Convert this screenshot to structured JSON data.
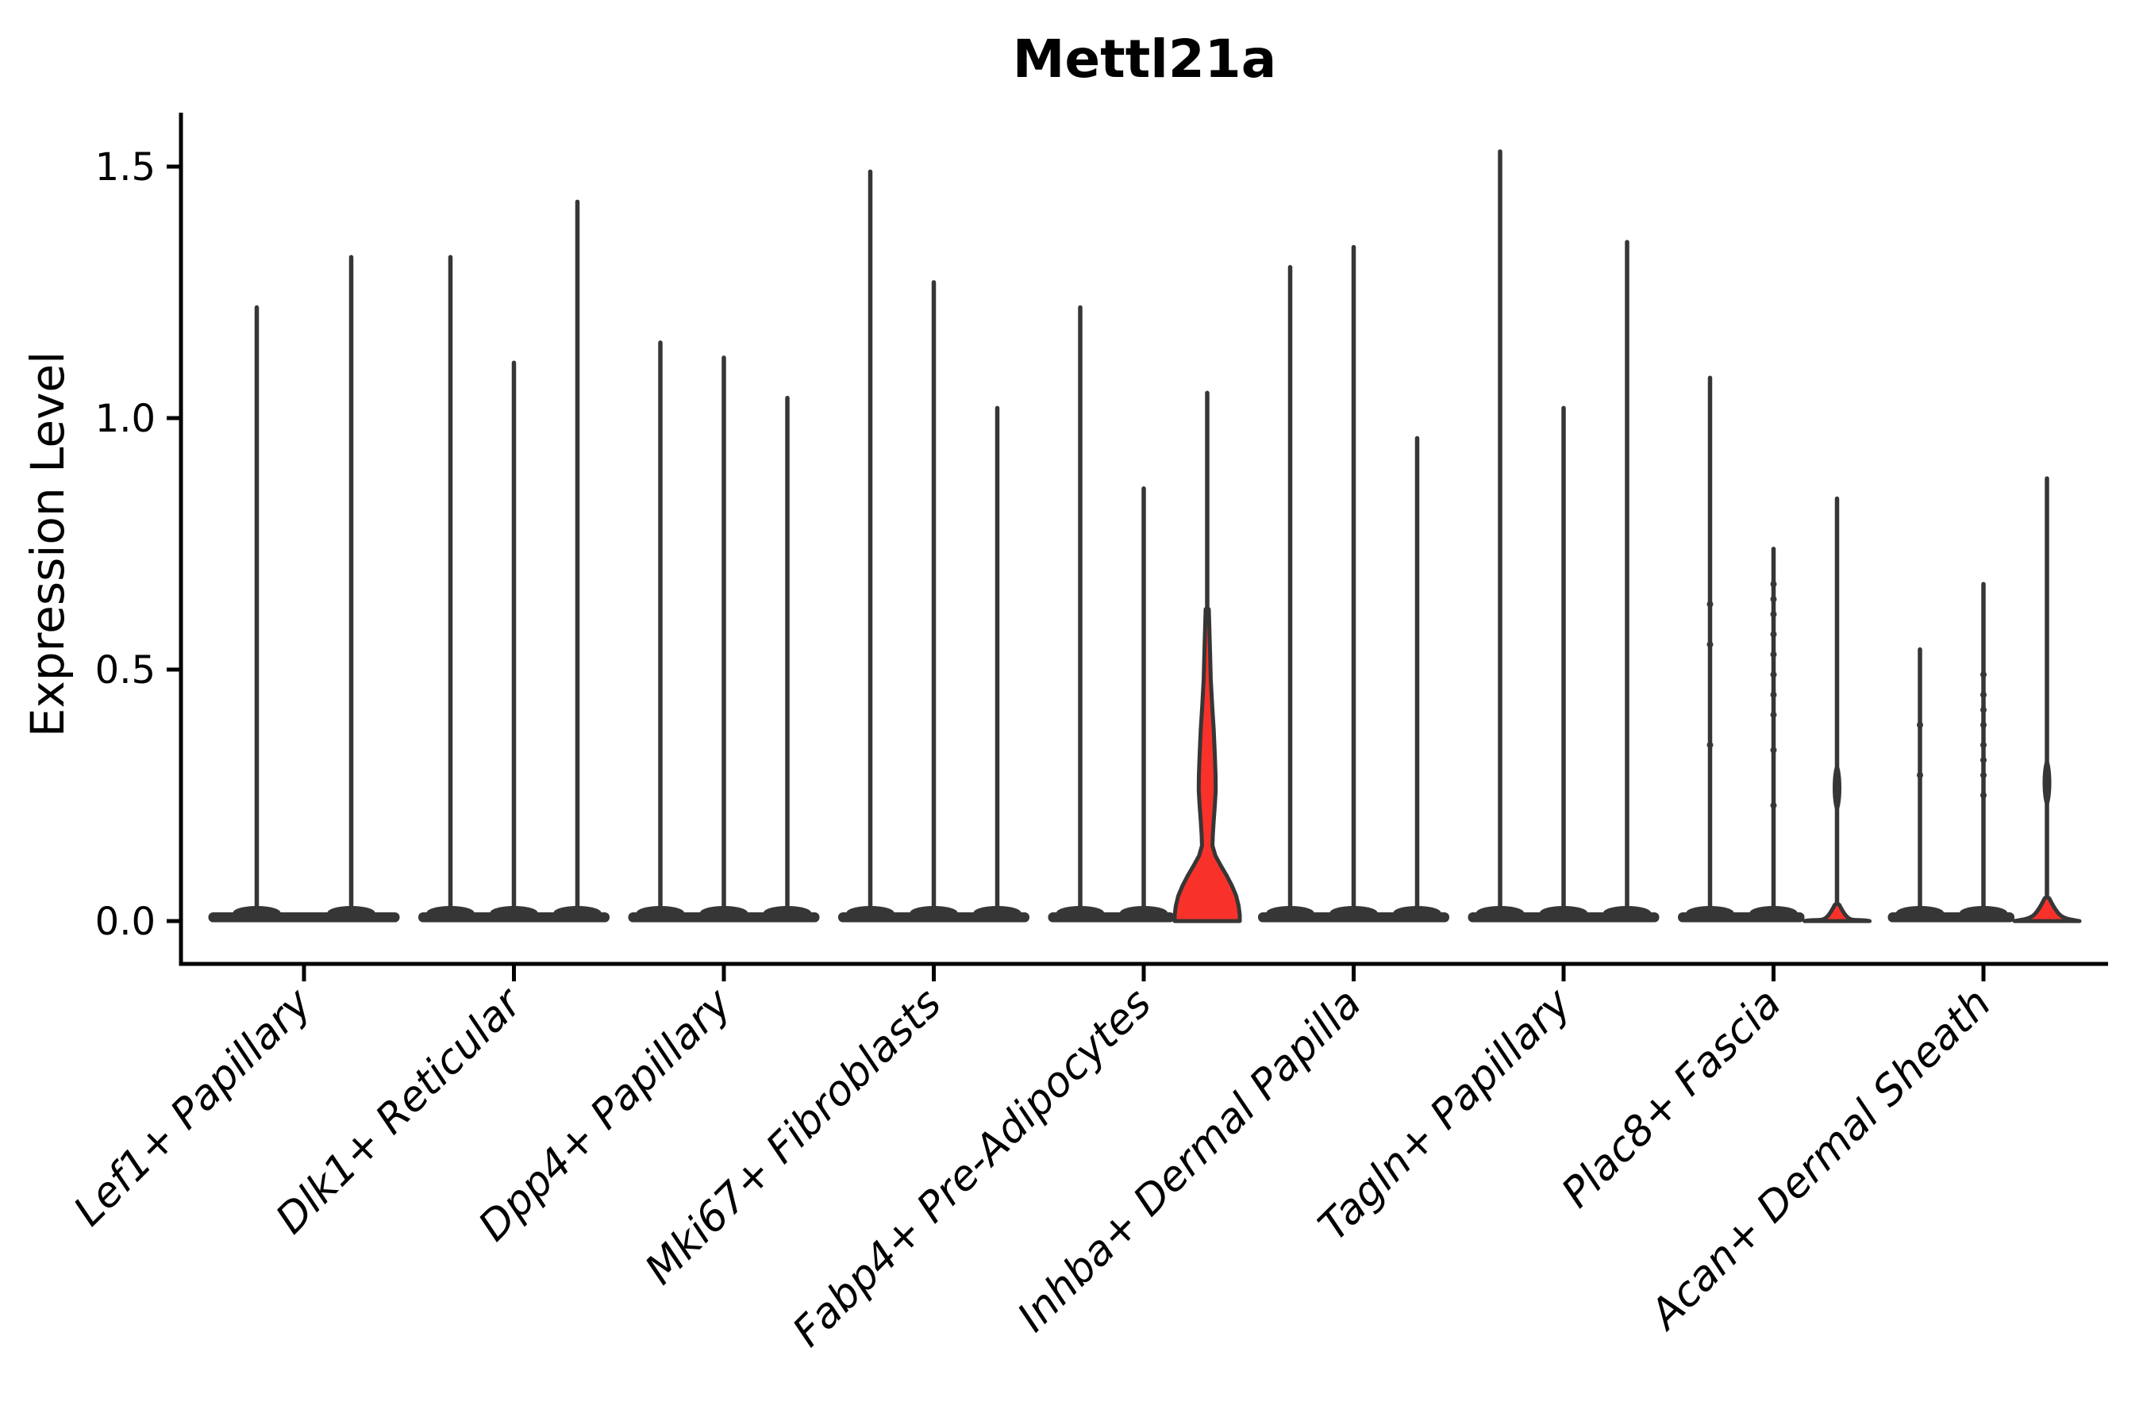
{
  "chart_data": {
    "type": "violin",
    "title": "Mettl21a",
    "ylabel": "Expression Level",
    "xlabel": "",
    "ytick_labels": [
      "0.0",
      "0.5",
      "1.0",
      "1.5"
    ],
    "ytick_values": [
      0.0,
      0.5,
      1.0,
      1.5
    ],
    "ylim": [
      -0.085,
      1.61
    ],
    "legend": "none",
    "grid": false,
    "categories": [
      "Lef1+ Papillary",
      "Dlk1+ Reticular",
      "Dpp4+ Papillary",
      "Mki67+ Fibroblasts",
      "Fabp4+ Pre-Adipocytes",
      "Inhba+ Dermal Papilla",
      "Tagln+ Papillary",
      "Plac8+ Fascia",
      "Acan+ Dermal Sheath"
    ],
    "colors": {
      "highlight_fill": "#f9312b",
      "violin_outline": "#363636",
      "axis": "#000000",
      "background": "#ffffff"
    },
    "groups": [
      {
        "category": "Lef1+ Papillary",
        "violins": [
          {
            "max": 1.22
          },
          {
            "max": 1.32
          }
        ]
      },
      {
        "category": "Dlk1+ Reticular",
        "violins": [
          {
            "max": 1.32
          },
          {
            "max": 1.11
          },
          {
            "max": 1.43
          }
        ]
      },
      {
        "category": "Dpp4+ Papillary",
        "violins": [
          {
            "max": 1.15
          },
          {
            "max": 1.12
          },
          {
            "max": 1.04
          }
        ]
      },
      {
        "category": "Mki67+ Fibroblasts",
        "violins": [
          {
            "max": 1.49
          },
          {
            "max": 1.27
          },
          {
            "max": 1.02
          }
        ]
      },
      {
        "category": "Fabp4+ Pre-Adipocytes",
        "violins": [
          {
            "max": 1.22
          },
          {
            "max": 0.86
          },
          {
            "max": 1.05,
            "highlighted": true,
            "body": "large",
            "body_profile": [
              [
                0.62,
                0.05
              ],
              [
                0.55,
                0.08
              ],
              [
                0.48,
                0.11
              ],
              [
                0.43,
                0.15
              ],
              [
                0.38,
                0.2
              ],
              [
                0.33,
                0.235
              ],
              [
                0.29,
                0.255
              ],
              [
                0.26,
                0.26
              ],
              [
                0.23,
                0.235
              ],
              [
                0.2,
                0.2
              ],
              [
                0.17,
                0.17
              ],
              [
                0.15,
                0.16
              ],
              [
                0.13,
                0.25
              ],
              [
                0.11,
                0.42
              ],
              [
                0.09,
                0.6
              ],
              [
                0.07,
                0.76
              ],
              [
                0.05,
                0.89
              ],
              [
                0.03,
                0.965
              ],
              [
                0.012,
                1.0
              ],
              [
                0.0,
                1.0
              ]
            ]
          }
        ]
      },
      {
        "category": "Inhba+ Dermal Papilla",
        "violins": [
          {
            "max": 1.3
          },
          {
            "max": 1.34
          },
          {
            "max": 0.96
          }
        ]
      },
      {
        "category": "Tagln+ Papillary",
        "violins": [
          {
            "max": 1.53
          },
          {
            "max": 1.02
          },
          {
            "max": 1.35
          }
        ]
      },
      {
        "category": "Plac8+ Fascia",
        "violins": [
          {
            "max": 1.08,
            "dots": [
              0.63,
              0.55,
              0.35
            ]
          },
          {
            "max": 0.74,
            "dots": [
              0.67,
              0.64,
              0.61,
              0.57,
              0.53,
              0.49,
              0.45,
              0.41,
              0.34,
              0.23
            ]
          },
          {
            "max": 0.84,
            "highlighted": true,
            "body": "small",
            "peak": 0.032,
            "bulge": 0.265
          }
        ]
      },
      {
        "category": "Acan+ Dermal Sheath",
        "violins": [
          {
            "max": 0.54,
            "dots": [
              0.39,
              0.29
            ]
          },
          {
            "max": 0.67,
            "dots": [
              0.49,
              0.45,
              0.42,
              0.39,
              0.35,
              0.32,
              0.29,
              0.25
            ]
          },
          {
            "max": 0.88,
            "highlighted": true,
            "body": "small",
            "peak": 0.045,
            "bulge": 0.275
          }
        ]
      }
    ]
  }
}
